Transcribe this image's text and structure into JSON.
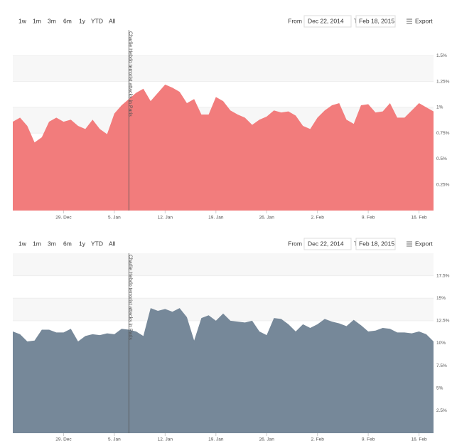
{
  "chart_data": [
    {
      "type": "area",
      "color": "#f27c7c",
      "buttons": [
        "1w",
        "1m",
        "3m",
        "6m",
        "1y",
        "YTD",
        "All"
      ],
      "from_label": "From",
      "from": "Dec 22, 2014",
      "to_label": "To",
      "to": "Feb 18, 2015",
      "export": "Export",
      "x": [
        "22. Dec",
        "23. Dec",
        "24. Dec",
        "25. Dec",
        "26. Dec",
        "27. Dec",
        "28. Dec",
        "29. Dec",
        "30. Dec",
        "31. Dec",
        "1. Jan",
        "2. Jan",
        "3. Jan",
        "4. Jan",
        "5. Jan",
        "6. Jan",
        "7. Jan",
        "8. Jan",
        "9. Jan",
        "10. Jan",
        "11. Jan",
        "12. Jan",
        "13. Jan",
        "14. Jan",
        "15. Jan",
        "16. Jan",
        "17. Jan",
        "18. Jan",
        "19. Jan",
        "20. Jan",
        "21. Jan",
        "22. Jan",
        "23. Jan",
        "24. Jan",
        "25. Jan",
        "26. Jan",
        "27. Jan",
        "28. Jan",
        "29. Jan",
        "30. Jan",
        "31. Jan",
        "1. Feb",
        "2. Feb",
        "3. Feb",
        "4. Feb",
        "5. Feb",
        "6. Feb",
        "7. Feb",
        "8. Feb",
        "9. Feb",
        "10. Feb",
        "11. Feb",
        "12. Feb",
        "13. Feb",
        "14. Feb",
        "15. Feb",
        "16. Feb",
        "17. Feb",
        "18. Feb"
      ],
      "values": [
        0.86,
        0.9,
        0.82,
        0.66,
        0.71,
        0.86,
        0.9,
        0.86,
        0.88,
        0.82,
        0.79,
        0.88,
        0.79,
        0.74,
        0.94,
        1.02,
        1.08,
        1.14,
        1.18,
        1.06,
        1.14,
        1.22,
        1.19,
        1.15,
        1.04,
        1.08,
        0.93,
        0.93,
        1.1,
        1.06,
        0.97,
        0.93,
        0.9,
        0.83,
        0.88,
        0.91,
        0.97,
        0.95,
        0.96,
        0.92,
        0.82,
        0.79,
        0.9,
        0.97,
        1.02,
        1.04,
        0.88,
        0.84,
        1.02,
        1.03,
        0.95,
        0.96,
        1.04,
        0.9,
        0.9,
        0.97,
        1.04,
        1.0,
        0.96
      ],
      "xticks": [
        "29. Dec",
        "5. Jan",
        "12. Jan",
        "19. Jan",
        "26. Jan",
        "2. Feb",
        "9. Feb",
        "16. Feb"
      ],
      "ylim": [
        0,
        1.75
      ],
      "yticks": [
        {
          "value": 0.25,
          "label": "0.25%"
        },
        {
          "value": 0.5,
          "label": "0.5%"
        },
        {
          "value": 0.75,
          "label": "0.75%"
        },
        {
          "value": 1,
          "label": "1%"
        },
        {
          "value": 1.25,
          "label": "1.25%"
        },
        {
          "value": 1.5,
          "label": "1.5%"
        }
      ],
      "annotation": {
        "text": "Charlie Hebdo terrorist attacks in Paris",
        "x": "7. Jan"
      }
    },
    {
      "type": "area",
      "color": "#768899",
      "buttons": [
        "1w",
        "1m",
        "3m",
        "6m",
        "1y",
        "YTD",
        "All"
      ],
      "from_label": "From",
      "from": "Dec 22, 2014",
      "to_label": "To",
      "to": "Feb 18, 2015",
      "export": "Export",
      "x": [
        "22. Dec",
        "23. Dec",
        "24. Dec",
        "25. Dec",
        "26. Dec",
        "27. Dec",
        "28. Dec",
        "29. Dec",
        "30. Dec",
        "31. Dec",
        "1. Jan",
        "2. Jan",
        "3. Jan",
        "4. Jan",
        "5. Jan",
        "6. Jan",
        "7. Jan",
        "8. Jan",
        "9. Jan",
        "10. Jan",
        "11. Jan",
        "12. Jan",
        "13. Jan",
        "14. Jan",
        "15. Jan",
        "16. Jan",
        "17. Jan",
        "18. Jan",
        "19. Jan",
        "20. Jan",
        "21. Jan",
        "22. Jan",
        "23. Jan",
        "24. Jan",
        "25. Jan",
        "26. Jan",
        "27. Jan",
        "28. Jan",
        "29. Jan",
        "30. Jan",
        "31. Jan",
        "1. Feb",
        "2. Feb",
        "3. Feb",
        "4. Feb",
        "5. Feb",
        "6. Feb",
        "7. Feb",
        "8. Feb",
        "9. Feb",
        "10. Feb",
        "11. Feb",
        "12. Feb",
        "13. Feb",
        "14. Feb",
        "15. Feb",
        "16. Feb",
        "17. Feb",
        "18. Feb"
      ],
      "values": [
        11.3,
        11.0,
        10.2,
        10.3,
        11.5,
        11.5,
        11.2,
        11.2,
        11.6,
        10.2,
        10.8,
        11.0,
        10.9,
        11.1,
        11.0,
        11.6,
        11.5,
        11.3,
        10.8,
        13.9,
        13.6,
        13.8,
        13.5,
        13.9,
        12.9,
        10.3,
        12.8,
        13.1,
        12.5,
        13.3,
        12.5,
        12.4,
        12.3,
        12.5,
        11.3,
        10.9,
        12.8,
        12.7,
        12.1,
        11.3,
        12.1,
        11.7,
        12.1,
        12.7,
        12.4,
        12.2,
        11.9,
        12.6,
        12.0,
        11.3,
        11.4,
        11.7,
        11.6,
        11.2,
        11.2,
        11.1,
        11.3,
        11.0,
        10.2
      ],
      "xticks": [
        "29. Dec",
        "5. Jan",
        "12. Jan",
        "19. Jan",
        "26. Jan",
        "2. Feb",
        "9. Feb",
        "16. Feb"
      ],
      "ylim": [
        0,
        20
      ],
      "yticks": [
        {
          "value": 2.5,
          "label": "2.5%"
        },
        {
          "value": 5,
          "label": "5%"
        },
        {
          "value": 7.5,
          "label": "7.5%"
        },
        {
          "value": 10,
          "label": "10%"
        },
        {
          "value": 12.5,
          "label": "12.5%"
        },
        {
          "value": 15,
          "label": "15%"
        },
        {
          "value": 17.5,
          "label": "17.5%"
        }
      ],
      "annotation": {
        "text": "Charlie Hebdo terrorist attacks in Paris",
        "x": "7. Jan"
      }
    }
  ]
}
